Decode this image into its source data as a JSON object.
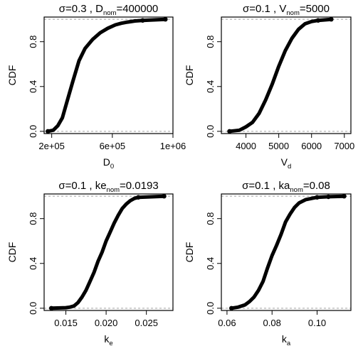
{
  "colors": {
    "line": "#000000",
    "reference": "#a0a0a0",
    "point": "#000000"
  },
  "chart_data": [
    {
      "type": "line",
      "title": {
        "prefix": "σ=0.3 , D",
        "sub": "nom",
        "suffix": "=400000"
      },
      "xlabel": {
        "main": "D",
        "sub": "0"
      },
      "ylabel": "CDF",
      "xlim": [
        150000,
        1000000
      ],
      "ylim": [
        -0.02,
        1.02
      ],
      "xticks": [
        200000,
        600000,
        1000000
      ],
      "xtick_labels": [
        "2e+05",
        "6e+05",
        "1e+06"
      ],
      "yticks": [
        0,
        0.4,
        0.8
      ],
      "ytick_labels": [
        "0.0",
        "0.4",
        "0.8"
      ],
      "reference_lines": [
        0,
        1
      ],
      "series": [
        {
          "x": [
            175000,
            210000,
            240000,
            270000,
            300000,
            340000,
            380000,
            420000,
            470000,
            520000,
            570000,
            620000,
            660000,
            700000,
            750000,
            800000,
            950000
          ],
          "y": [
            0,
            0.01,
            0.05,
            0.12,
            0.26,
            0.45,
            0.63,
            0.74,
            0.82,
            0.88,
            0.92,
            0.95,
            0.965,
            0.975,
            0.985,
            0.99,
            1.0
          ]
        }
      ]
    },
    {
      "type": "line",
      "title": {
        "prefix": "σ=0.1 , V",
        "sub": "nom",
        "suffix": "=5000"
      },
      "xlabel": {
        "main": "V",
        "sub": "d"
      },
      "ylabel": "CDF",
      "xlim": [
        3250,
        7200
      ],
      "ylim": [
        -0.02,
        1.02
      ],
      "xticks": [
        4000,
        5000,
        6000,
        7000
      ],
      "xtick_labels": [
        "4000",
        "5000",
        "6000",
        "7000"
      ],
      "yticks": [
        0,
        0.4,
        0.8
      ],
      "ytick_labels": [
        "0.0",
        "0.4",
        "0.8"
      ],
      "reference_lines": [
        0,
        1
      ],
      "series": [
        {
          "x": [
            3500,
            3800,
            4000,
            4200,
            4400,
            4600,
            4800,
            5000,
            5200,
            5400,
            5600,
            5800,
            6000,
            6200,
            6600
          ],
          "y": [
            0,
            0.01,
            0.04,
            0.08,
            0.16,
            0.28,
            0.42,
            0.58,
            0.72,
            0.83,
            0.91,
            0.96,
            0.98,
            0.99,
            1.0
          ]
        }
      ]
    },
    {
      "type": "line",
      "title": {
        "prefix": "σ=0.1 , ke",
        "sub": "nom",
        "suffix": "=0.0193"
      },
      "xlabel": {
        "main": "k",
        "sub": "e"
      },
      "ylabel": "CDF",
      "xlim": [
        0.0123,
        0.0283
      ],
      "ylim": [
        -0.02,
        1.02
      ],
      "xticks": [
        0.015,
        0.02,
        0.025
      ],
      "xtick_labels": [
        "0.015",
        "0.020",
        "0.025"
      ],
      "yticks": [
        0,
        0.4,
        0.8
      ],
      "ytick_labels": [
        "0.0",
        "0.4",
        "0.8"
      ],
      "reference_lines": [
        0,
        1
      ],
      "series": [
        {
          "x": [
            0.0132,
            0.015,
            0.0155,
            0.016,
            0.0165,
            0.017,
            0.0175,
            0.018,
            0.0185,
            0.019,
            0.0195,
            0.02,
            0.0205,
            0.021,
            0.0215,
            0.022,
            0.0225,
            0.023,
            0.0235,
            0.024,
            0.0272
          ],
          "y": [
            0,
            0.005,
            0.01,
            0.02,
            0.05,
            0.1,
            0.16,
            0.24,
            0.32,
            0.42,
            0.5,
            0.6,
            0.68,
            0.76,
            0.83,
            0.89,
            0.93,
            0.96,
            0.98,
            0.99,
            1.0
          ]
        }
      ]
    },
    {
      "type": "line",
      "title": {
        "prefix": "σ=0.1 , ka",
        "sub": "nom",
        "suffix": "=0.08"
      },
      "xlabel": {
        "main": "k",
        "sub": "a"
      },
      "ylabel": "CDF",
      "xlim": [
        0.0575,
        0.115
      ],
      "ylim": [
        -0.02,
        1.02
      ],
      "xticks": [
        0.06,
        0.08,
        0.1
      ],
      "xtick_labels": [
        "0.06",
        "0.08",
        "0.10"
      ],
      "yticks": [
        0,
        0.4,
        0.8
      ],
      "ytick_labels": [
        "0.0",
        "0.4",
        "0.8"
      ],
      "reference_lines": [
        0,
        1
      ],
      "series": [
        {
          "x": [
            0.062,
            0.065,
            0.068,
            0.07,
            0.072,
            0.074,
            0.076,
            0.078,
            0.08,
            0.082,
            0.084,
            0.086,
            0.088,
            0.09,
            0.092,
            0.095,
            0.1,
            0.105,
            0.112
          ],
          "y": [
            0,
            0.01,
            0.03,
            0.06,
            0.1,
            0.16,
            0.24,
            0.36,
            0.47,
            0.56,
            0.66,
            0.77,
            0.84,
            0.9,
            0.94,
            0.97,
            0.99,
            0.995,
            1.0
          ]
        }
      ]
    }
  ]
}
